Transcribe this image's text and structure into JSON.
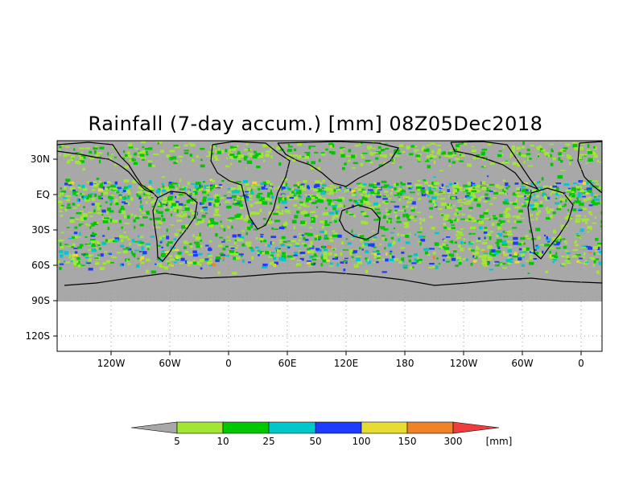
{
  "title": "Rainfall (7-day accum.) [mm] 08Z05Dec2018",
  "map": {
    "y_ticks": [
      "30N",
      "EQ",
      "30S",
      "60S",
      "90S",
      "120S"
    ],
    "x_ticks": [
      "120W",
      "60W",
      "0",
      "60E",
      "120E",
      "180",
      "120W",
      "60W",
      "0"
    ],
    "land_color": "#000000",
    "no_rain_color": "#a8a8a8"
  },
  "colorbar": {
    "labels": [
      "5",
      "10",
      "25",
      "50",
      "100",
      "150",
      "300"
    ],
    "unit": "[mm]",
    "colors": [
      "#a8a8a8",
      "#a0e632",
      "#00c800",
      "#00c8c8",
      "#1e3cff",
      "#e6dc32",
      "#f08228",
      "#f03c3c"
    ]
  }
}
